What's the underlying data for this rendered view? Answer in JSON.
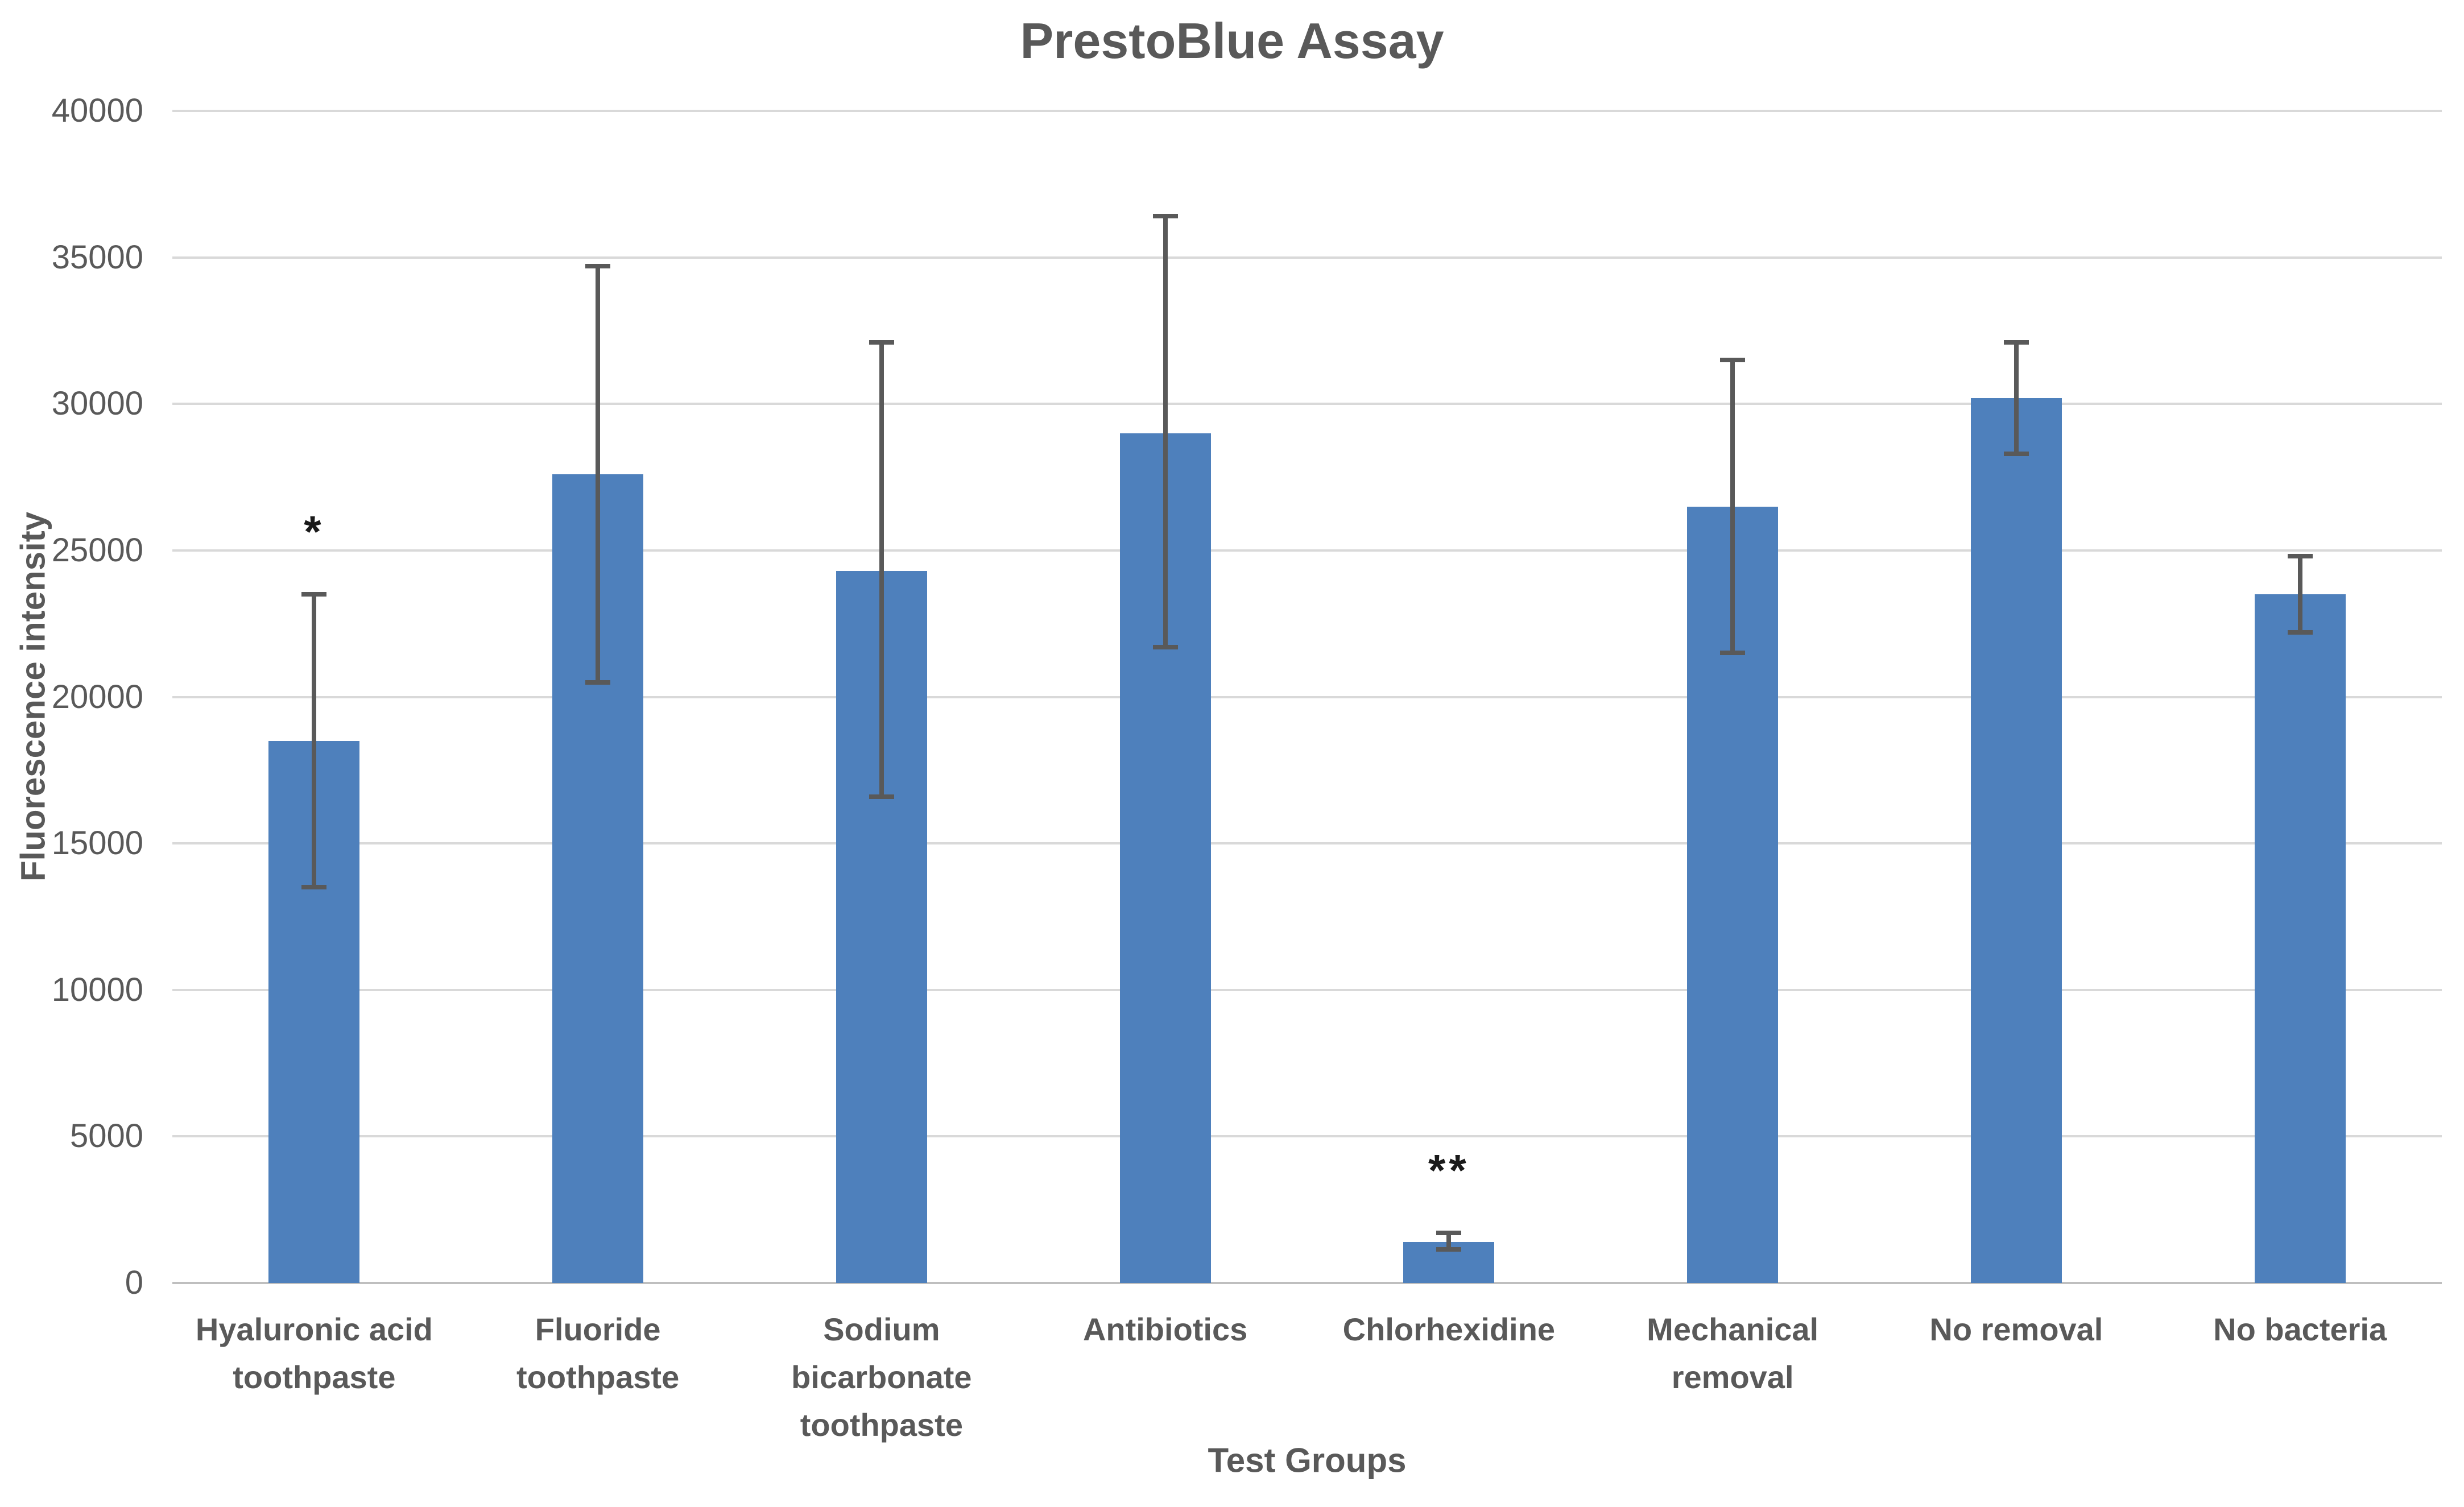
{
  "chart_data": {
    "type": "bar",
    "title": "PrestoBlue Assay",
    "xlabel": "Test Groups",
    "ylabel": "Fluorescence intensity",
    "ylim": [
      0,
      40000
    ],
    "ytick_step": 5000,
    "ytick_labels": [
      "0",
      "5000",
      "10000",
      "15000",
      "20000",
      "25000",
      "30000",
      "35000",
      "40000"
    ],
    "grid": "horizontal",
    "legend": "none",
    "categories": [
      "Hyaluronic acid\ntoothpaste",
      "Fluoride\ntoothpaste",
      "Sodium\nbicarbonate\ntoothpaste",
      "Antibiotics",
      "Chlorhexidine",
      "Mechanical\nremoval",
      "No removal",
      "No bacteria"
    ],
    "series": [
      {
        "name": "Fluorescence intensity",
        "values": [
          18500,
          27600,
          24300,
          29000,
          1400,
          26500,
          30200,
          23500
        ],
        "error_top": [
          23500,
          34700,
          32100,
          36400,
          1700,
          31500,
          32100,
          24800
        ],
        "error_bottom": [
          13500,
          20500,
          16600,
          21700,
          1150,
          21500,
          28300,
          22200
        ]
      }
    ],
    "annotations": [
      {
        "category_index": 0,
        "text": "*"
      },
      {
        "category_index": 4,
        "text": "**"
      }
    ],
    "colors": {
      "bar": "#4E80BC",
      "error_bar": "#595959",
      "gridline": "#D9D9D9",
      "axis_line": "#BFBFBF",
      "text": "#595959",
      "annotation": "#1A1A1A",
      "background": "#FFFFFF"
    }
  }
}
